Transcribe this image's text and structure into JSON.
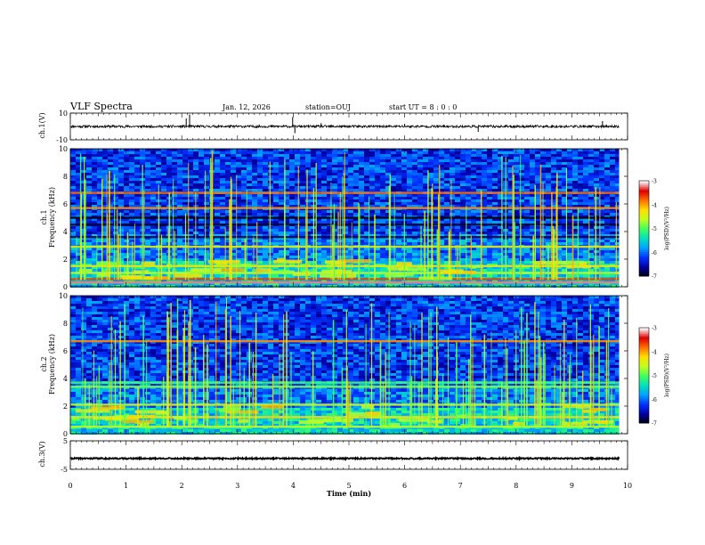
{
  "header": {
    "title": "VLF Spectra",
    "date": "Jan. 12, 2026",
    "station": "station=OUJ",
    "start": "start UT =  8 : 0 : 0"
  },
  "colors": {
    "background": "#ffffff",
    "axes": "#000000",
    "colormap": [
      "#000000",
      "#0000a0",
      "#0030ff",
      "#00a0ff",
      "#00e0c0",
      "#40ff60",
      "#c0ff20",
      "#ffe000",
      "#ff7000",
      "#e00000",
      "#ffffff"
    ]
  },
  "chart_data": [
    {
      "type": "line",
      "name": "ch1-waveform",
      "ylabel": "ch.1(V)",
      "ylim": [
        -10,
        10
      ],
      "yticks": [
        "10",
        "-10"
      ],
      "xlim": [
        0,
        10
      ],
      "baseline": 0,
      "typical_amplitude": 0.9,
      "spikes": [
        {
          "x": 2.08,
          "y": 6.0
        },
        {
          "x": 2.14,
          "y": 9.0
        },
        {
          "x": 3.99,
          "y": 7.0
        },
        {
          "x": 4.03,
          "y": -5.0
        },
        {
          "x": 4.5,
          "y": 2.5
        },
        {
          "x": 6.0,
          "y": 2.0
        },
        {
          "x": 7.32,
          "y": -4.0
        },
        {
          "x": 9.55,
          "y": 4.0
        }
      ]
    },
    {
      "type": "heatmap",
      "name": "ch1-spectrogram",
      "ylabel": "ch.1\nFrequency (kHz)",
      "xlim": [
        0,
        10
      ],
      "ylim": [
        0,
        10
      ],
      "yticks": [
        "0",
        "2",
        "4",
        "6",
        "8",
        "10"
      ],
      "data_end_min": 9.85,
      "colorbar": {
        "label": "log(PSD)(V²/Hz)",
        "range": [
          -7,
          -3
        ],
        "ticks": [
          "-3",
          "-4",
          "-5",
          "-6",
          "-7"
        ]
      },
      "bands": [
        {
          "f": 0.3,
          "level": -3.2
        },
        {
          "f": 0.55,
          "level": -3.6
        },
        {
          "f": 1.0,
          "level": -4.6
        },
        {
          "f": 1.5,
          "level": -4.3
        },
        {
          "f": 2.9,
          "level": -4.4
        },
        {
          "f": 3.6,
          "level": -6.8
        },
        {
          "f": 4.5,
          "level": -6.9
        },
        {
          "f": 5.0,
          "level": -7.0
        },
        {
          "f": 5.7,
          "level": -3.9
        },
        {
          "f": 6.8,
          "level": -3.8
        }
      ]
    },
    {
      "type": "heatmap",
      "name": "ch2-spectrogram",
      "ylabel": "ch.2\nFrequency (kHz)",
      "xlim": [
        0,
        10
      ],
      "ylim": [
        0,
        10
      ],
      "yticks": [
        "0",
        "2",
        "4",
        "6",
        "8",
        "10"
      ],
      "data_end_min": 9.85,
      "colorbar": {
        "label": "log(PSD)(V²/Hz)",
        "range": [
          -7,
          -3
        ],
        "ticks": [
          "-3",
          "-4",
          "-5",
          "-6",
          "-7"
        ]
      },
      "bands": [
        {
          "f": 0.5,
          "level": -4.6
        },
        {
          "f": 1.2,
          "level": -4.2
        },
        {
          "f": 2.1,
          "level": -4.5
        },
        {
          "f": 3.4,
          "level": -4.8
        },
        {
          "f": 3.7,
          "level": -5.0
        },
        {
          "f": 6.7,
          "level": -3.9
        }
      ]
    },
    {
      "type": "line",
      "name": "ch3-waveform",
      "ylabel": "ch.3(V)",
      "ylim": [
        -5,
        5
      ],
      "yticks": [
        "5",
        "-5"
      ],
      "xlim": [
        0,
        10
      ],
      "baseline": -1.2,
      "typical_amplitude": 0.25
    }
  ],
  "xaxis": {
    "label": "Time (min)",
    "ticks": [
      "0",
      "1",
      "2",
      "3",
      "4",
      "5",
      "6",
      "7",
      "8",
      "9",
      "10"
    ]
  }
}
